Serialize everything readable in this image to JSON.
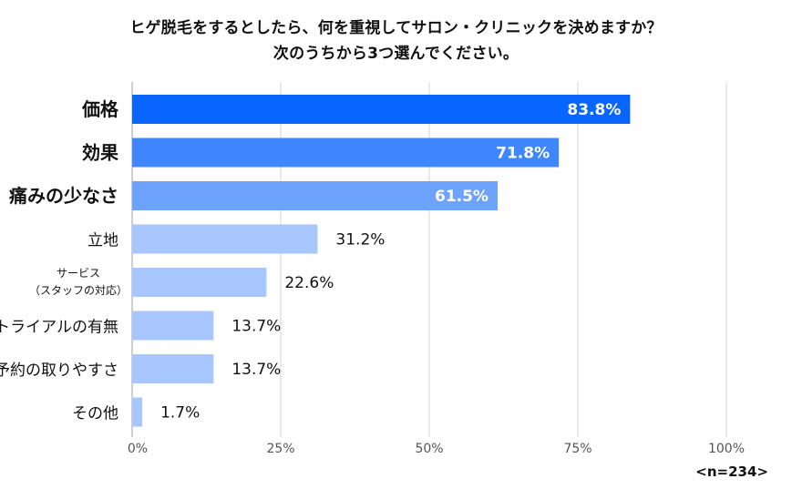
{
  "chart_data": {
    "type": "bar",
    "orientation": "horizontal",
    "title_lines": [
      "ヒゲ脱毛をするとしたら、何を重視してサロン・クリニックを決めますか？",
      "次のうちから3つ選んでください。"
    ],
    "categories": [
      {
        "lines": [
          "価格"
        ],
        "bold": true
      },
      {
        "lines": [
          "効果"
        ],
        "bold": true
      },
      {
        "lines": [
          "痛みの少なさ"
        ],
        "bold": true
      },
      {
        "lines": [
          "立地"
        ],
        "bold": false
      },
      {
        "lines": [
          "サービス",
          "（スタッフの対応）"
        ],
        "bold": false,
        "small": true
      },
      {
        "lines": [
          "トライアルの有無"
        ],
        "bold": false
      },
      {
        "lines": [
          "予約の取りやすさ"
        ],
        "bold": false
      },
      {
        "lines": [
          "その他"
        ],
        "bold": false
      }
    ],
    "values": [
      83.8,
      71.8,
      61.5,
      31.2,
      22.6,
      13.7,
      13.7,
      1.7
    ],
    "value_labels": [
      "83.8%",
      "71.8%",
      "61.5%",
      "31.2%",
      "22.6%",
      "13.7%",
      "13.7%",
      "1.7%"
    ],
    "label_inside": [
      true,
      true,
      true,
      false,
      false,
      false,
      false,
      false
    ],
    "bar_colors": [
      "#0866ff",
      "#3e87ff",
      "#6da3ff",
      "#a8c6ff",
      "#a8c6ff",
      "#a8c6ff",
      "#a8c6ff",
      "#a8c6ff"
    ],
    "xlim": [
      0,
      100
    ],
    "x_ticks": [
      0,
      25,
      50,
      75,
      100
    ],
    "x_tick_labels": [
      "0%",
      "25%",
      "50%",
      "75%",
      "100%"
    ],
    "grid": true,
    "note": "<n=234>"
  }
}
